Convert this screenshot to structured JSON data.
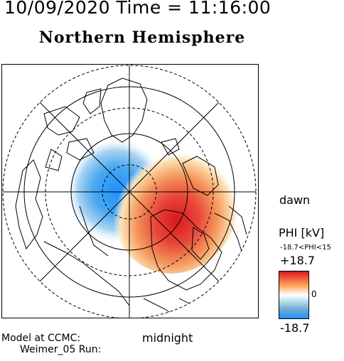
{
  "header": {
    "datetime": "10/09/2020 Time = 11:16:00",
    "hemisphere": "Northern Hemisphere"
  },
  "map": {
    "label_dawn": "dawn",
    "label_midnight": "midnight",
    "pattern": {
      "positive_cell": "+18.7 kV (dawn side, red)",
      "negative_cell": "-18.7 kV (dusk side, blue)"
    }
  },
  "legend": {
    "title": "PHI [kV]",
    "range_text": "-18.7<PHI<15",
    "max_label": "+18.7",
    "zero_label": "0",
    "min_label": "-18.7",
    "colors": {
      "max": "#d7191c",
      "mid": "#ffffff",
      "min": "#1e90ff"
    }
  },
  "footer": {
    "model_line1": "Model at CCMC:",
    "model_line2": "Weimer_05 Run:"
  }
}
